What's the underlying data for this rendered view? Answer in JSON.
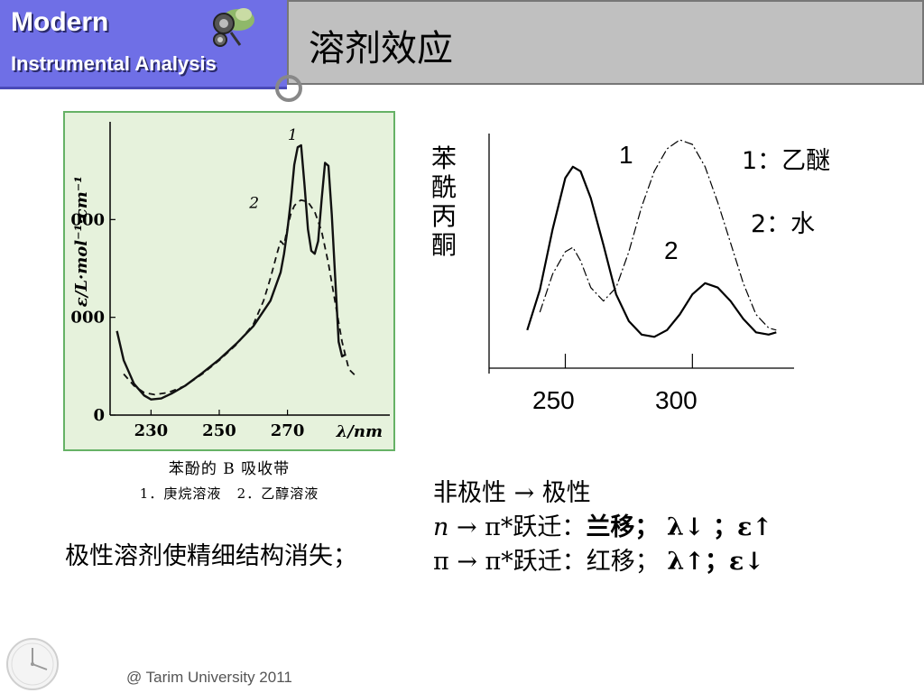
{
  "header": {
    "brand_title": "Modern",
    "brand_subtitle": "Instrumental Analysis",
    "page_title": "溶剂效应"
  },
  "figure_left": {
    "caption": "苯酚的 B 吸收带",
    "legend_1": "1．庚烷溶液",
    "legend_2": "2．乙醇溶液",
    "note": "极性溶剂使精细结构消失；"
  },
  "figure_right": {
    "ylabel": "苯酰丙酮",
    "legend_1": "1：乙醚",
    "legend_2": "2：水",
    "curve_label_1": "1",
    "curve_label_2": "2",
    "ticks": [
      "250",
      "300"
    ]
  },
  "rules": {
    "line1": "非极性 → 极性",
    "line2_a": "n",
    "line2_b": " → π*跃迁：",
    "line2_c": "兰移；",
    "line2_d": "λ↓ ；ε↑",
    "line3_a": "π → π*跃迁：红移；",
    "line3_b": "λ↑；ε↓"
  },
  "footer": {
    "copyright": "@ Tarim University 2011"
  },
  "chart_data": [
    {
      "type": "line",
      "title": "苯酚的 B 吸收带",
      "xlabel": "λ/nm",
      "ylabel": "ε/L·mol⁻¹·cm⁻¹",
      "x_ticks": [
        230,
        250,
        270
      ],
      "y_ticks": [
        0,
        1000,
        2000
      ],
      "xlim": [
        218,
        300
      ],
      "ylim": [
        0,
        3000
      ],
      "grid": false,
      "series": [
        {
          "name": "1",
          "style": "solid",
          "x": [
            220,
            222,
            225,
            228,
            230,
            233,
            236,
            240,
            245,
            250,
            255,
            260,
            265,
            268,
            269,
            270,
            271,
            272,
            273,
            274,
            275,
            276,
            277,
            278,
            279,
            280,
            281,
            282,
            283,
            284,
            285,
            286,
            287
          ],
          "y": [
            860,
            560,
            320,
            200,
            160,
            170,
            220,
            300,
            430,
            570,
            730,
            910,
            1170,
            1460,
            1650,
            1900,
            2200,
            2560,
            2740,
            2760,
            2350,
            1900,
            1680,
            1650,
            1780,
            2200,
            2580,
            2550,
            2050,
            1400,
            750,
            600,
            620
          ]
        },
        {
          "name": "2",
          "style": "dashed",
          "x": [
            222,
            225,
            228,
            231,
            235,
            240,
            245,
            250,
            255,
            260,
            263,
            265,
            267,
            268,
            269,
            270,
            271,
            272,
            273,
            274,
            276,
            278,
            280,
            282,
            284,
            286,
            288,
            290
          ],
          "y": [
            420,
            300,
            230,
            210,
            230,
            300,
            420,
            560,
            720,
            930,
            1170,
            1400,
            1660,
            1780,
            1740,
            1920,
            2060,
            2140,
            2180,
            2200,
            2180,
            2080,
            1880,
            1550,
            1150,
            750,
            470,
            400
          ]
        }
      ]
    },
    {
      "type": "line",
      "xlabel": "",
      "ylabel": "苯酰丙酮",
      "x_ticks": [
        250,
        300
      ],
      "xlim": [
        220,
        340
      ],
      "ylim": [
        0,
        1
      ],
      "grid": false,
      "series": [
        {
          "name": "1：乙醚",
          "style": "solid",
          "x": [
            235,
            240,
            245,
            250,
            253,
            256,
            260,
            265,
            270,
            275,
            280,
            285,
            290,
            295,
            300,
            305,
            310,
            315,
            320,
            325,
            330,
            333
          ],
          "y": [
            0.17,
            0.35,
            0.62,
            0.85,
            0.9,
            0.88,
            0.76,
            0.55,
            0.33,
            0.21,
            0.15,
            0.14,
            0.17,
            0.24,
            0.33,
            0.38,
            0.36,
            0.3,
            0.22,
            0.16,
            0.15,
            0.16
          ]
        },
        {
          "name": "2：水",
          "style": "dashdot",
          "x": [
            240,
            245,
            250,
            253,
            256,
            260,
            265,
            270,
            275,
            280,
            285,
            290,
            295,
            300,
            305,
            310,
            315,
            320,
            325,
            330,
            333
          ],
          "y": [
            0.25,
            0.42,
            0.52,
            0.54,
            0.48,
            0.36,
            0.3,
            0.36,
            0.52,
            0.72,
            0.88,
            0.98,
            1.02,
            1.0,
            0.9,
            0.74,
            0.56,
            0.38,
            0.24,
            0.18,
            0.17
          ]
        }
      ]
    }
  ]
}
